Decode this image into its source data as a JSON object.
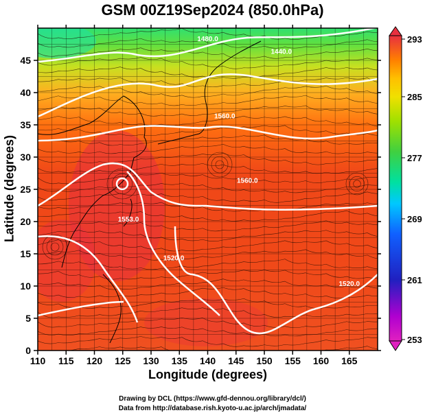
{
  "title": "GSM 00Z19Sep2024 (850.0hPa)",
  "x_axis": {
    "label": "Longitude (degrees)",
    "ticks": [
      "110",
      "115",
      "120",
      "125",
      "130",
      "135",
      "140",
      "145",
      "150",
      "155",
      "160",
      "165"
    ],
    "range": [
      110,
      170
    ]
  },
  "y_axis": {
    "label": "Latitude  (degrees)",
    "ticks": [
      "0",
      "5",
      "10",
      "15",
      "20",
      "25",
      "30",
      "35",
      "40",
      "45"
    ],
    "range": [
      0,
      50
    ]
  },
  "colorbar": {
    "ticks": [
      "293",
      "285",
      "277",
      "269",
      "261",
      "253"
    ],
    "range": [
      253,
      293
    ],
    "colors": [
      "#e020c0",
      "#c000d0",
      "#2020c0",
      "#1060ff",
      "#00c0ff",
      "#00e0a0",
      "#40d040",
      "#a0e000",
      "#e0e000",
      "#ffc000",
      "#ff8000",
      "#f04020",
      "#e83040"
    ]
  },
  "contour_labels": [
    {
      "text": "1440.0",
      "lon": 153,
      "lat": 46
    },
    {
      "text": "1480.0",
      "lon": 140,
      "lat": 48
    },
    {
      "text": "1560.0",
      "lon": 143,
      "lat": 36
    },
    {
      "text": "1560.0",
      "lon": 147,
      "lat": 26
    },
    {
      "text": "1520.0",
      "lon": 134,
      "lat": 14
    },
    {
      "text": "1520.0",
      "lon": 165,
      "lat": 10
    },
    {
      "text": "1553.0",
      "lon": 126,
      "lat": 20
    }
  ],
  "credits": {
    "line1": "Drawing by DCL (https://www.gfd-dennou.org/library/dcl/)",
    "line2": "Data from http://database.rish.kyoto-u.ac.jp/arch/jmadata/"
  }
}
